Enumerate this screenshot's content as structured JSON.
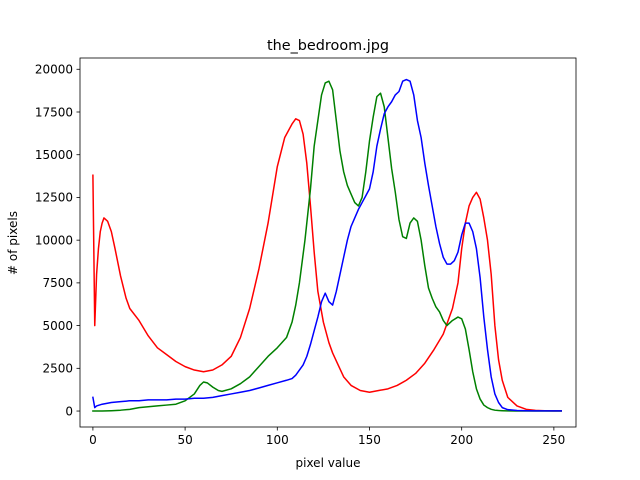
{
  "chart_data": {
    "type": "line",
    "title": "the_bedroom.jpg",
    "xlabel": "pixel value",
    "ylabel": "# of pixels",
    "xlim": [
      -7,
      262
    ],
    "ylim": [
      -934,
      20660
    ],
    "xticks": [
      0,
      50,
      100,
      150,
      200,
      250
    ],
    "yticks": [
      0,
      2500,
      5000,
      7500,
      10000,
      12500,
      15000,
      17500,
      20000
    ],
    "series": [
      {
        "color": "#ff0000",
        "x": [
          0,
          1,
          2,
          3,
          4,
          5,
          6,
          8,
          10,
          12,
          15,
          18,
          20,
          25,
          30,
          35,
          40,
          45,
          50,
          55,
          60,
          65,
          70,
          75,
          80,
          85,
          90,
          95,
          100,
          104,
          108,
          110,
          112,
          114,
          116,
          118,
          120,
          122,
          125,
          128,
          130,
          133,
          136,
          140,
          145,
          150,
          155,
          160,
          165,
          170,
          175,
          180,
          185,
          190,
          195,
          198,
          200,
          202,
          204,
          206,
          208,
          210,
          212,
          214,
          216,
          218,
          220,
          222,
          225,
          230,
          235,
          240,
          245,
          250,
          254
        ],
        "y": [
          13800,
          5000,
          8000,
          9500,
          10500,
          11000,
          11300,
          11100,
          10500,
          9500,
          7900,
          6600,
          6000,
          5300,
          4400,
          3700,
          3300,
          2900,
          2600,
          2400,
          2300,
          2400,
          2700,
          3200,
          4300,
          6000,
          8300,
          11000,
          14300,
          16000,
          16800,
          17100,
          17000,
          16200,
          14500,
          12000,
          9300,
          7000,
          5200,
          4000,
          3400,
          2700,
          2000,
          1500,
          1200,
          1100,
          1200,
          1300,
          1500,
          1800,
          2200,
          2800,
          3600,
          4500,
          6000,
          7500,
          9500,
          11000,
          12000,
          12500,
          12800,
          12400,
          11300,
          10000,
          8000,
          5000,
          3000,
          1800,
          800,
          300,
          100,
          40,
          20,
          10,
          10
        ]
      },
      {
        "color": "#008000",
        "x": [
          0,
          5,
          10,
          15,
          20,
          25,
          30,
          35,
          40,
          45,
          50,
          55,
          58,
          60,
          62,
          65,
          68,
          70,
          75,
          80,
          85,
          90,
          95,
          100,
          105,
          108,
          110,
          112,
          115,
          118,
          120,
          122,
          124,
          126,
          128,
          130,
          132,
          134,
          136,
          138,
          140,
          142,
          144,
          146,
          148,
          150,
          152,
          154,
          156,
          158,
          160,
          162,
          164,
          166,
          168,
          170,
          172,
          174,
          176,
          178,
          180,
          182,
          184,
          186,
          188,
          190,
          192,
          195,
          198,
          200,
          202,
          204,
          206,
          208,
          210,
          212,
          214,
          216,
          218,
          220,
          222,
          225,
          230,
          235,
          240,
          245,
          250,
          254
        ],
        "y": [
          0,
          0,
          20,
          50,
          100,
          200,
          250,
          300,
          350,
          400,
          600,
          1000,
          1500,
          1700,
          1650,
          1400,
          1200,
          1150,
          1300,
          1600,
          2000,
          2600,
          3200,
          3700,
          4300,
          5200,
          6200,
          7500,
          10000,
          13000,
          15500,
          17000,
          18500,
          19200,
          19300,
          18800,
          17000,
          15200,
          14000,
          13200,
          12700,
          12200,
          12000,
          12500,
          14000,
          15800,
          17200,
          18400,
          18600,
          17800,
          16000,
          14200,
          12800,
          11200,
          10200,
          10100,
          11000,
          11300,
          11100,
          10000,
          8500,
          7200,
          6600,
          6100,
          5800,
          5300,
          5000,
          5300,
          5500,
          5400,
          4800,
          3600,
          2300,
          1300,
          700,
          350,
          200,
          100,
          50,
          30,
          20,
          10,
          5,
          5,
          5,
          5,
          5,
          5
        ]
      },
      {
        "color": "#0000ff",
        "x": [
          0,
          1,
          2,
          5,
          10,
          15,
          20,
          25,
          30,
          35,
          40,
          45,
          50,
          55,
          60,
          65,
          70,
          75,
          80,
          85,
          90,
          95,
          100,
          105,
          108,
          110,
          112,
          114,
          116,
          118,
          120,
          122,
          124,
          126,
          128,
          130,
          132,
          134,
          136,
          138,
          140,
          142,
          144,
          146,
          148,
          150,
          152,
          154,
          156,
          158,
          160,
          162,
          164,
          166,
          168,
          170,
          172,
          174,
          176,
          178,
          180,
          182,
          184,
          186,
          188,
          190,
          192,
          194,
          196,
          198,
          200,
          202,
          204,
          206,
          208,
          210,
          212,
          214,
          216,
          218,
          220,
          222,
          225,
          230,
          235,
          240,
          245,
          250,
          254
        ],
        "y": [
          800,
          200,
          300,
          400,
          500,
          550,
          600,
          600,
          650,
          650,
          650,
          700,
          700,
          750,
          750,
          800,
          900,
          1000,
          1100,
          1200,
          1350,
          1500,
          1650,
          1800,
          1900,
          2100,
          2400,
          2700,
          3200,
          3900,
          4700,
          5500,
          6400,
          6900,
          6400,
          6200,
          7000,
          8000,
          9000,
          10000,
          10800,
          11300,
          11800,
          12200,
          12600,
          13000,
          14000,
          15500,
          16500,
          17400,
          17800,
          18100,
          18500,
          18700,
          19300,
          19400,
          19300,
          18500,
          17000,
          16000,
          14500,
          13200,
          12000,
          10800,
          9800,
          9000,
          8600,
          8600,
          8800,
          9300,
          10300,
          11000,
          11000,
          10500,
          9500,
          7800,
          5500,
          3600,
          2000,
          1000,
          500,
          200,
          80,
          30,
          20,
          10,
          10,
          10,
          10
        ]
      }
    ]
  }
}
